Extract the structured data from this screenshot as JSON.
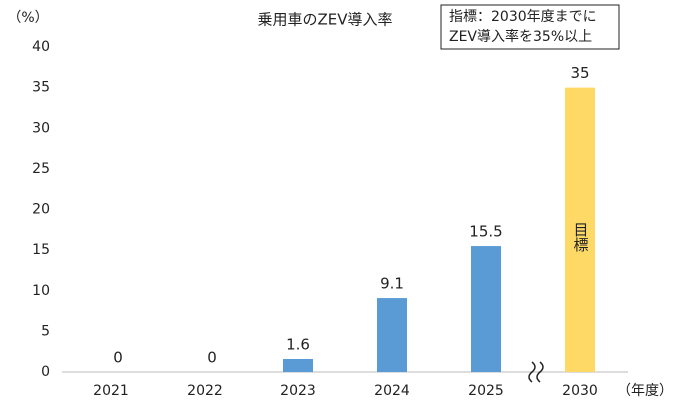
{
  "chart_data": {
    "type": "bar",
    "title": "乗用車のZEV導入率",
    "y_unit_label": "（%）",
    "x_unit_label": "（年度）",
    "categories": [
      "2021",
      "2022",
      "2023",
      "2024",
      "2025",
      "2030"
    ],
    "values": [
      0,
      0,
      1.6,
      9.1,
      15.5,
      35
    ],
    "colors": [
      "#5b9bd5",
      "#5b9bd5",
      "#5b9bd5",
      "#5b9bd5",
      "#5b9bd5",
      "#ffd966"
    ],
    "ylim": [
      0,
      40
    ],
    "yticks": [
      0,
      5,
      10,
      15,
      20,
      25,
      30,
      35,
      40
    ],
    "grid": false,
    "bar_annotation": "目標",
    "note_box": [
      "指標：2030年度までに",
      "ZEV導入率を35%以上"
    ]
  }
}
